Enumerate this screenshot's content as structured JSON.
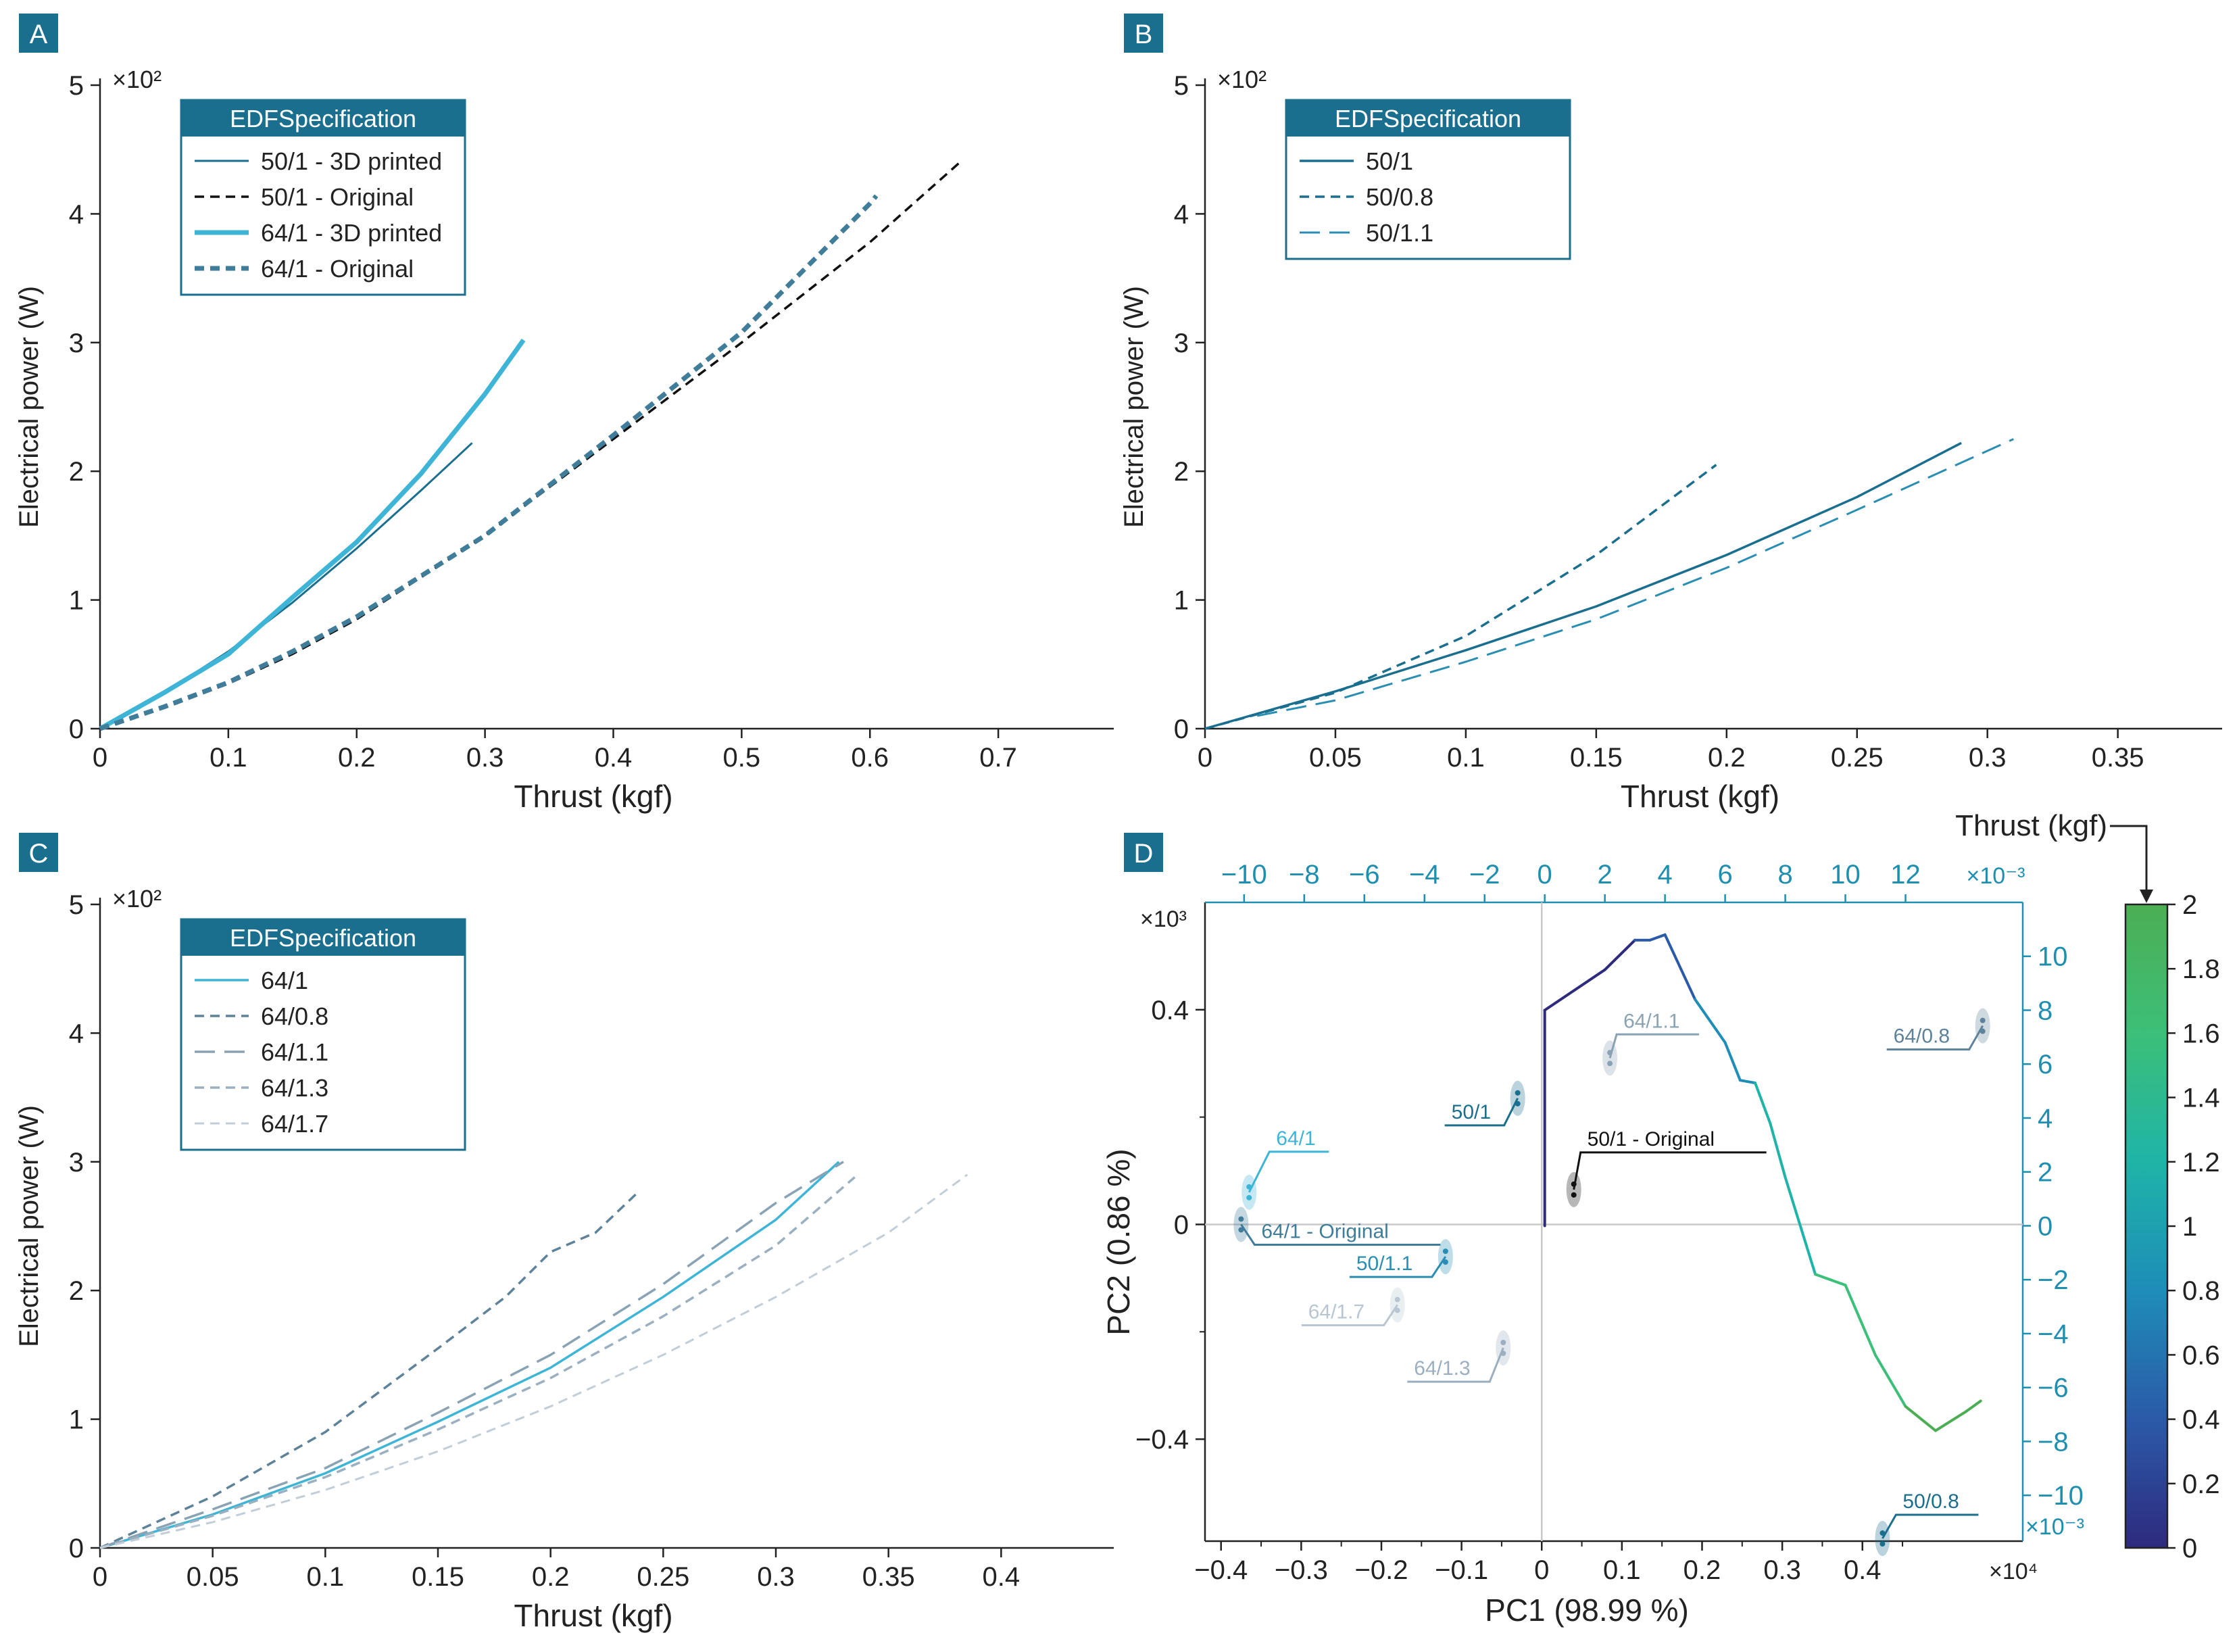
{
  "chart_data": [
    {
      "panel": "A",
      "type": "line",
      "xlabel": "Thrust (kgf)",
      "ylabel": "Electrical power (W)",
      "y_multiplier": "×10²",
      "xlim": [
        0,
        0.79
      ],
      "ylim": [
        0,
        5
      ],
      "xticks": [
        "0",
        "0.1",
        "0.2",
        "0.3",
        "0.4",
        "0.5",
        "0.6",
        "0.7"
      ],
      "yticks": [
        "0",
        "1",
        "2",
        "3",
        "4",
        "5"
      ],
      "legend_title": "EDFSpecification",
      "series": [
        {
          "name": "50/1 - 3D printed",
          "color": "#1a6e8e",
          "style": "solid",
          "width": 3,
          "x": [
            0,
            0.05,
            0.1,
            0.15,
            0.2,
            0.25,
            0.29
          ],
          "y": [
            0,
            0.28,
            0.6,
            0.98,
            1.4,
            1.85,
            2.22
          ]
        },
        {
          "name": "50/1 - Original",
          "color": "#111111",
          "style": "dash",
          "width": 3.5,
          "x": [
            0,
            0.05,
            0.1,
            0.15,
            0.2,
            0.3,
            0.4,
            0.5,
            0.6,
            0.67
          ],
          "y": [
            0,
            0.16,
            0.35,
            0.58,
            0.85,
            1.5,
            2.25,
            3.0,
            3.78,
            4.4
          ]
        },
        {
          "name": "64/1 - 3D printed",
          "color": "#3eb4d6",
          "style": "solid",
          "width": 7,
          "x": [
            0,
            0.05,
            0.1,
            0.15,
            0.2,
            0.25,
            0.3,
            0.33
          ],
          "y": [
            0,
            0.28,
            0.58,
            1.02,
            1.45,
            1.98,
            2.6,
            3.02
          ]
        },
        {
          "name": "64/1 - Original",
          "color": "#3f7d9a",
          "style": "dash",
          "width": 7,
          "x": [
            0,
            0.05,
            0.1,
            0.15,
            0.2,
            0.3,
            0.4,
            0.5,
            0.6,
            0.605
          ],
          "y": [
            0,
            0.17,
            0.36,
            0.6,
            0.87,
            1.5,
            2.28,
            3.08,
            4.08,
            4.14
          ]
        }
      ]
    },
    {
      "panel": "B",
      "type": "line",
      "xlabel": "Thrust (kgf)",
      "ylabel": "Electrical power (W)",
      "y_multiplier": "×10²",
      "xlim": [
        0,
        0.39
      ],
      "ylim": [
        0,
        5
      ],
      "xticks": [
        "0",
        "0.05",
        "0.1",
        "0.15",
        "0.2",
        "0.25",
        "0.3",
        "0.35"
      ],
      "yticks": [
        "0",
        "1",
        "2",
        "3",
        "4",
        "5"
      ],
      "legend_title": "EDFSpecification",
      "series": [
        {
          "name": "50/1",
          "color": "#1a6e8e",
          "style": "solid",
          "width": 3.5,
          "x": [
            0,
            0.05,
            0.1,
            0.15,
            0.2,
            0.25,
            0.29
          ],
          "y": [
            0,
            0.29,
            0.61,
            0.95,
            1.35,
            1.8,
            2.22
          ]
        },
        {
          "name": "50/0.8",
          "color": "#1a6e8e",
          "style": "dash",
          "width": 3.5,
          "x": [
            0,
            0.05,
            0.1,
            0.15,
            0.196
          ],
          "y": [
            0,
            0.28,
            0.72,
            1.35,
            2.05
          ]
        },
        {
          "name": "50/1.1",
          "color": "#2a8eb2",
          "style": "longdash",
          "width": 3,
          "x": [
            0.02,
            0.05,
            0.1,
            0.15,
            0.2,
            0.25,
            0.31
          ],
          "y": [
            0.1,
            0.22,
            0.52,
            0.85,
            1.25,
            1.7,
            2.25
          ]
        }
      ]
    },
    {
      "panel": "C",
      "type": "line",
      "xlabel": "Thrust (kgf)",
      "ylabel": "Electrical power (W)",
      "y_multiplier": "×10²",
      "xlim": [
        0,
        0.45
      ],
      "ylim": [
        0,
        5
      ],
      "xticks": [
        "0",
        "0.05",
        "0.1",
        "0.15",
        "0.2",
        "0.25",
        "0.3",
        "0.35",
        "0.4"
      ],
      "yticks": [
        "0",
        "1",
        "2",
        "3",
        "4",
        "5"
      ],
      "legend_title": "EDFSpecification",
      "series": [
        {
          "name": "64/1",
          "color": "#3eb4d6",
          "style": "solid",
          "width": 3.5,
          "x": [
            0,
            0.05,
            0.1,
            0.15,
            0.2,
            0.25,
            0.3,
            0.328
          ],
          "y": [
            0,
            0.26,
            0.58,
            0.98,
            1.4,
            1.95,
            2.55,
            3.0
          ]
        },
        {
          "name": "64/0.8",
          "color": "#5d8299",
          "style": "dash",
          "width": 3.5,
          "x": [
            0,
            0.05,
            0.1,
            0.15,
            0.18,
            0.2,
            0.22,
            0.238
          ],
          "y": [
            0,
            0.4,
            0.9,
            1.55,
            1.95,
            2.3,
            2.45,
            2.75
          ]
        },
        {
          "name": "64/1.1",
          "color": "#8aa3b4",
          "style": "longdash",
          "width": 3.5,
          "x": [
            0,
            0.05,
            0.1,
            0.15,
            0.2,
            0.25,
            0.3,
            0.33
          ],
          "y": [
            0,
            0.3,
            0.62,
            1.05,
            1.5,
            2.05,
            2.68,
            3.0
          ]
        },
        {
          "name": "64/1.3",
          "color": "#9aafc0",
          "style": "dash",
          "width": 3.5,
          "x": [
            0,
            0.05,
            0.1,
            0.15,
            0.2,
            0.25,
            0.3,
            0.335
          ],
          "y": [
            0,
            0.25,
            0.55,
            0.92,
            1.32,
            1.8,
            2.35,
            2.88
          ]
        },
        {
          "name": "64/1.7",
          "color": "#c1ced8",
          "style": "dash",
          "width": 3,
          "x": [
            0,
            0.05,
            0.1,
            0.15,
            0.2,
            0.25,
            0.3,
            0.35,
            0.385
          ],
          "y": [
            0,
            0.2,
            0.45,
            0.75,
            1.1,
            1.5,
            1.95,
            2.45,
            2.9
          ]
        }
      ]
    },
    {
      "panel": "D",
      "type": "scatter",
      "xlabel": "PC1 (98.99 %)",
      "ylabel": "PC2 (0.86 %)",
      "x_multiplier": "×10⁴",
      "y_multiplier": "×10³",
      "xlim": [
        -0.42,
        0.6
      ],
      "ylim": [
        -0.59,
        0.6
      ],
      "xticks": [
        "−0.4",
        "−0.3",
        "−0.2",
        "−0.1",
        "0",
        "0.1",
        "0.2",
        "0.3",
        "0.4"
      ],
      "yticks": [
        "0.4",
        "0",
        "−0.4"
      ],
      "top_axis": {
        "label_multiplier": "×10⁻³",
        "min": -11.3,
        "max": 15.9,
        "ticks": [
          "−10",
          "−8",
          "−6",
          "−4",
          "−2",
          "0",
          "2",
          "4",
          "6",
          "8",
          "10",
          "12"
        ],
        "color": "#1f8fb0"
      },
      "right_axis": {
        "label_multiplier": "×10⁻³",
        "min": -11.7,
        "max": 12.0,
        "ticks": [
          "10",
          "8",
          "6",
          "4",
          "2",
          "0",
          "−2",
          "−4",
          "−6",
          "−8",
          "−10"
        ],
        "color": "#1f8fb0"
      },
      "colorbar": {
        "title": "Thrust (kgf)",
        "min": 0,
        "max": 2,
        "ticks": [
          "2",
          "1.8",
          "1.6",
          "1.4",
          "1.2",
          "1",
          "0.8",
          "0.6",
          "0.4",
          "0.2",
          "0"
        ],
        "colors": [
          "#2e2a7e",
          "#2b5aa8",
          "#1e8db8",
          "#1fb4a8",
          "#3cbf78",
          "#4cae54"
        ]
      },
      "loading_curve": {
        "top_x": [
          0,
          0,
          2,
          3,
          3.5,
          4,
          5,
          6,
          6.5,
          7,
          7.5,
          8,
          9,
          10,
          11,
          12,
          13,
          14,
          14.5
        ],
        "right_y": [
          0,
          8,
          9.5,
          10.6,
          10.6,
          10.8,
          8.4,
          6.8,
          5.4,
          5.3,
          3.8,
          1.8,
          -1.8,
          -2.2,
          -4.8,
          -6.7,
          -7.6,
          -6.9,
          -6.5
        ]
      },
      "clusters": [
        {
          "label": "64/1",
          "x": -0.365,
          "y": 0.06,
          "color": "#3eb4d6"
        },
        {
          "label": "64/1 - Original",
          "x": -0.375,
          "y": 0.0,
          "color": "#3f7d9a"
        },
        {
          "label": "50/1",
          "x": -0.03,
          "y": 0.235,
          "color": "#1a6e8e"
        },
        {
          "label": "50/1 - Original",
          "x": 0.04,
          "y": 0.065,
          "color": "#111111"
        },
        {
          "label": "64/1.1",
          "x": 0.085,
          "y": 0.31,
          "color": "#8aa3b4"
        },
        {
          "label": "50/1.1",
          "x": -0.12,
          "y": -0.06,
          "color": "#2a8eb2"
        },
        {
          "label": "64/1.7",
          "x": -0.18,
          "y": -0.15,
          "color": "#b7c6d2"
        },
        {
          "label": "64/1.3",
          "x": -0.048,
          "y": -0.23,
          "color": "#9aafc0"
        },
        {
          "label": "64/0.8",
          "x": 0.55,
          "y": 0.37,
          "color": "#5d8299"
        },
        {
          "label": "50/0.8",
          "x": 0.425,
          "y": -0.585,
          "color": "#1a6e8e"
        }
      ]
    }
  ],
  "panels": {
    "A": "A",
    "B": "B",
    "C": "C",
    "D": "D"
  }
}
